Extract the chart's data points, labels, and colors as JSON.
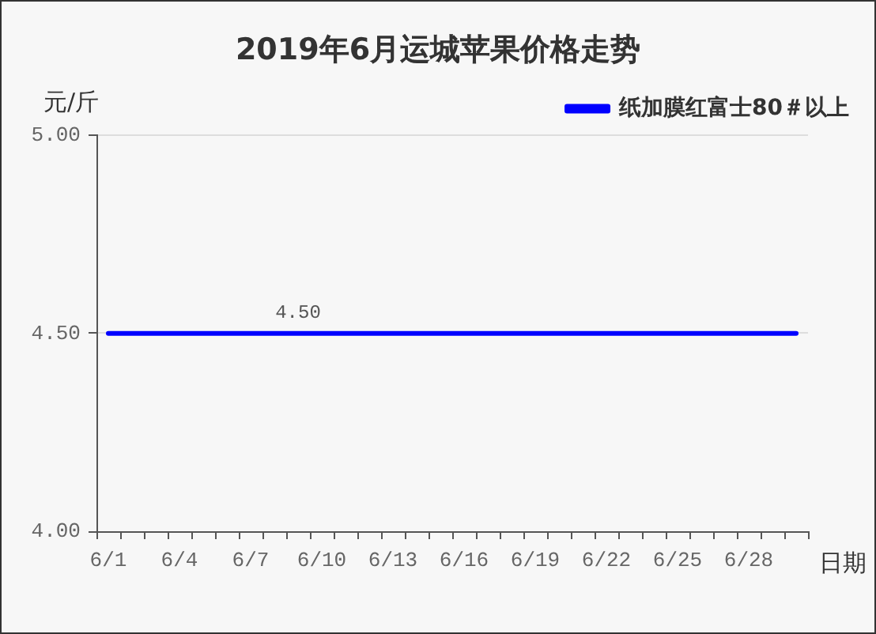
{
  "chart_data": {
    "type": "line",
    "title": "2019年6月运城苹果价格走势",
    "ylabel": "元/斤",
    "xlabel": "日期",
    "categories": [
      "6/1",
      null,
      null,
      "6/4",
      null,
      null,
      "6/7",
      null,
      null,
      "6/10",
      null,
      null,
      "6/13",
      null,
      null,
      "6/16",
      null,
      null,
      "6/19",
      null,
      null,
      "6/22",
      null,
      null,
      "6/25",
      null,
      null,
      "6/28",
      null,
      null
    ],
    "series": [
      {
        "name": "纸加膜红富士80＃以上",
        "color": "#0000ff",
        "values": [
          4.5,
          4.5,
          4.5,
          4.5,
          4.5,
          4.5,
          4.5,
          4.5,
          4.5,
          4.5,
          4.5,
          4.5,
          4.5,
          4.5,
          4.5,
          4.5,
          4.5,
          4.5,
          4.5,
          4.5,
          4.5,
          4.5,
          4.5,
          4.5,
          4.5,
          4.5,
          4.5,
          4.5,
          4.5,
          4.5
        ],
        "value_labels": [
          null,
          null,
          null,
          null,
          null,
          null,
          null,
          null,
          "4.50",
          null,
          null,
          null,
          null,
          null,
          null,
          null,
          null,
          null,
          null,
          null,
          null,
          null,
          null,
          null,
          null,
          null,
          null,
          null,
          null,
          null
        ]
      }
    ],
    "ylim": [
      4,
      5
    ],
    "yticks": [
      {
        "value": 4,
        "label": "4.00"
      },
      {
        "value": 4.5,
        "label": "4.50"
      },
      {
        "value": 5,
        "label": "5.00"
      }
    ],
    "grid": "y",
    "legend": "top right",
    "marker": "none",
    "line_style": "solid"
  }
}
